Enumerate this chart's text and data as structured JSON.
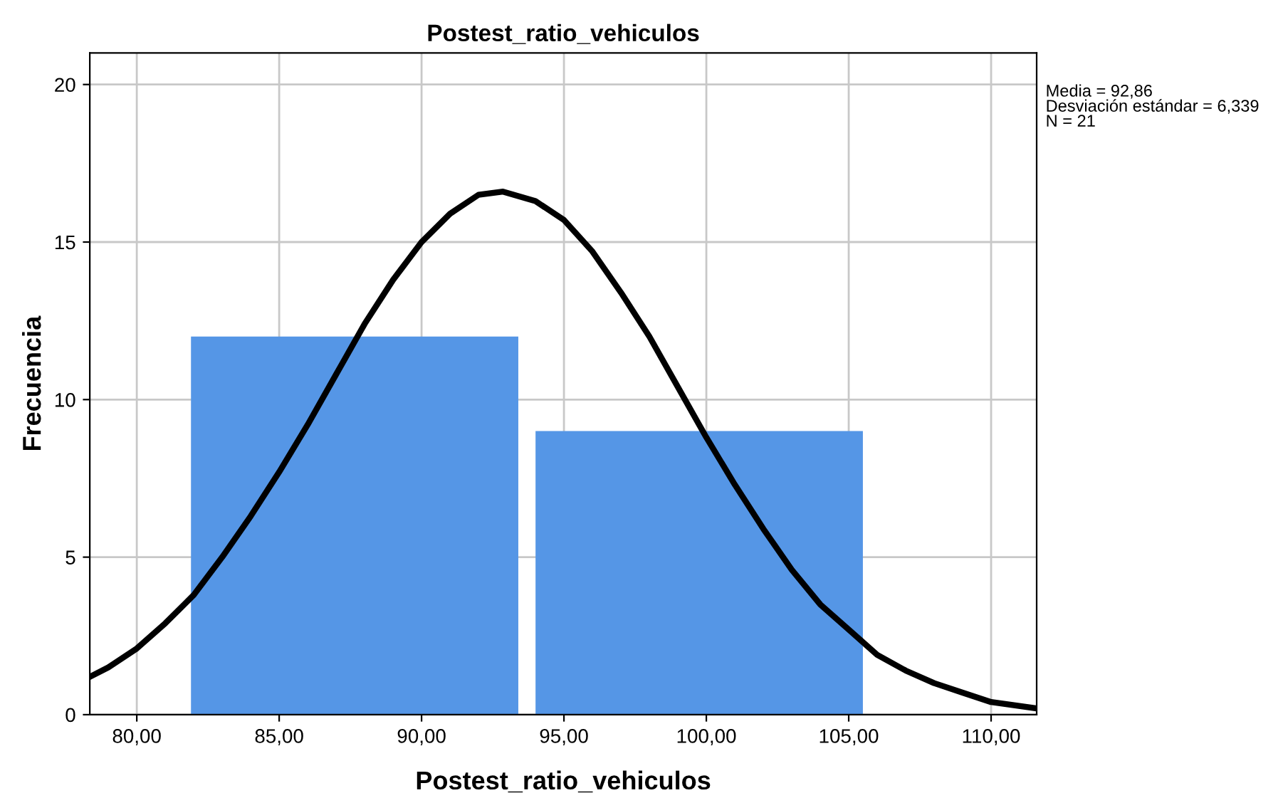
{
  "chart_data": {
    "type": "histogram",
    "title": "Postest_ratio_vehiculos",
    "xlabel": "Postest_ratio_vehiculos",
    "ylabel": "Frecuencia",
    "bins": [
      81.6,
      93.7,
      105.8
    ],
    "values": [
      12,
      9
    ],
    "color": "#5596e6",
    "series": [
      {
        "type": "line",
        "color": "#000000",
        "x": [
          78.35,
          79,
          80,
          81,
          82,
          83,
          84,
          85,
          86,
          87,
          88,
          89,
          90,
          91,
          92,
          92.86,
          94,
          95,
          96,
          97,
          98,
          99,
          100,
          101,
          102,
          103,
          104,
          105,
          106,
          107,
          108,
          109,
          110,
          111.6
        ],
        "values": [
          1.2,
          1.5,
          2.1,
          2.9,
          3.8,
          5.0,
          6.3,
          7.7,
          9.2,
          10.8,
          12.4,
          13.8,
          15.0,
          15.9,
          16.5,
          16.6,
          16.3,
          15.7,
          14.7,
          13.4,
          12.0,
          10.4,
          8.8,
          7.3,
          5.9,
          4.6,
          3.5,
          2.7,
          1.9,
          1.4,
          1.0,
          0.7,
          0.4,
          0.2
        ]
      }
    ],
    "xlim": [
      78.35,
      111.6
    ],
    "ylim": [
      0,
      21
    ],
    "xticks": [
      {
        "value": 80,
        "label": "80,00"
      },
      {
        "value": 85,
        "label": "85,00"
      },
      {
        "value": 90,
        "label": "90,00"
      },
      {
        "value": 95,
        "label": "95,00"
      },
      {
        "value": 100,
        "label": "100,00"
      },
      {
        "value": 105,
        "label": "105,00"
      },
      {
        "value": 110,
        "label": "110,00"
      }
    ],
    "yticks": [
      0,
      5,
      10,
      15,
      20
    ],
    "grid": true,
    "annotations": [
      "Media = 92,86\nDesviación estándar = 6,339\nN = 21"
    ]
  }
}
